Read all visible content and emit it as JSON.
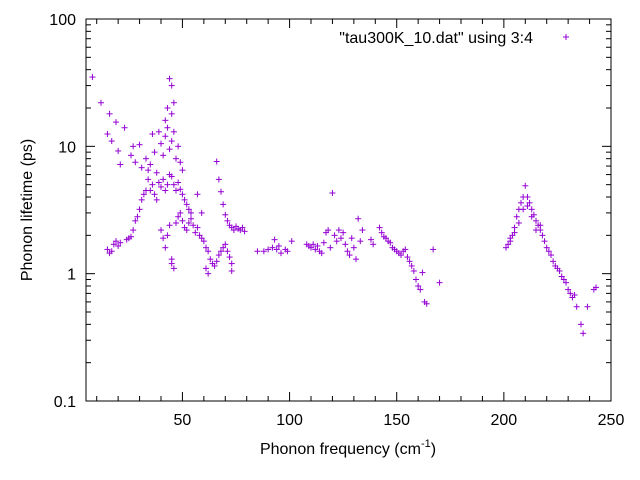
{
  "chart_data": {
    "type": "scatter",
    "xlabel": "Phonon frequency (cm",
    "xlabel_sup": "-1",
    "xlabel_end": ")",
    "ylabel": "Phonon lifetime (ps)",
    "xlim": [
      5,
      250
    ],
    "ylim": [
      0.1,
      100
    ],
    "yscale": "log",
    "x_ticks": [
      50,
      100,
      150,
      200,
      250
    ],
    "x_tick_labels": [
      "50",
      "100",
      "150",
      "200",
      "250"
    ],
    "y_ticks": [
      0.1,
      1,
      10,
      100
    ],
    "y_tick_labels": [
      "0.1",
      "1",
      "10",
      "100"
    ],
    "grid": false,
    "legend_position": "top-right",
    "marker": "+",
    "color": "#9400d3",
    "series": [
      {
        "name": "\"tau300K_10.dat\" using 3:4",
        "points": [
          [
            8,
            35
          ],
          [
            12,
            22
          ],
          [
            15,
            12.5
          ],
          [
            16,
            18
          ],
          [
            17,
            11
          ],
          [
            19,
            15.5
          ],
          [
            20,
            9.2
          ],
          [
            21,
            7.2
          ],
          [
            23,
            14
          ],
          [
            26,
            8.5
          ],
          [
            27,
            10
          ],
          [
            28,
            7.5
          ],
          [
            30,
            10.3
          ],
          [
            31,
            6.8
          ],
          [
            33,
            8
          ],
          [
            34,
            6.5
          ],
          [
            35,
            7.2
          ],
          [
            36,
            12.5
          ],
          [
            37,
            9
          ],
          [
            38,
            6.2
          ],
          [
            39,
            13
          ],
          [
            40,
            10.5
          ],
          [
            41,
            8.5
          ],
          [
            42,
            12
          ],
          [
            43,
            14
          ],
          [
            44,
            9.5
          ],
          [
            45,
            11
          ],
          [
            46,
            13
          ],
          [
            47,
            8
          ],
          [
            48,
            10
          ],
          [
            49,
            7.5
          ],
          [
            50,
            6.5
          ],
          [
            43,
            20
          ],
          [
            45,
            18
          ],
          [
            44,
            34
          ],
          [
            45,
            30
          ],
          [
            42,
            16
          ],
          [
            46,
            22
          ],
          [
            34,
            5.5
          ],
          [
            35,
            4.5
          ],
          [
            36,
            5
          ],
          [
            37,
            4.2
          ],
          [
            38,
            3.8
          ],
          [
            39,
            5.2
          ],
          [
            40,
            4.8
          ],
          [
            41,
            5.5
          ],
          [
            42,
            4.5
          ],
          [
            43,
            5
          ],
          [
            44,
            6
          ],
          [
            45,
            5.8
          ],
          [
            46,
            5
          ],
          [
            47,
            4.5
          ],
          [
            48,
            5.2
          ],
          [
            49,
            4.6
          ],
          [
            50,
            4.2
          ],
          [
            51,
            3.8
          ],
          [
            52,
            3.5
          ],
          [
            53,
            3.2
          ],
          [
            54,
            3
          ],
          [
            15,
            1.55
          ],
          [
            16,
            1.45
          ],
          [
            17,
            1.5
          ],
          [
            18,
            1.7
          ],
          [
            19,
            1.8
          ],
          [
            20,
            1.65
          ],
          [
            21,
            1.75
          ],
          [
            24,
            1.85
          ],
          [
            25,
            1.9
          ],
          [
            26,
            1.95
          ],
          [
            27,
            2.2
          ],
          [
            28,
            2.6
          ],
          [
            29,
            2.8
          ],
          [
            30,
            3.2
          ],
          [
            31,
            3.8
          ],
          [
            32,
            4.2
          ],
          [
            33,
            4.5
          ],
          [
            40,
            2.2
          ],
          [
            41,
            1.9
          ],
          [
            42,
            1.6
          ],
          [
            43,
            2
          ],
          [
            44,
            2.4
          ],
          [
            45,
            1.3
          ],
          [
            46,
            1.1
          ],
          [
            45,
            1.2
          ],
          [
            47,
            2.5
          ],
          [
            48,
            2.8
          ],
          [
            49,
            3
          ],
          [
            50,
            2.6
          ],
          [
            51,
            2.3
          ],
          [
            52,
            2.2
          ],
          [
            53,
            2.5
          ],
          [
            54,
            2.7
          ],
          [
            55,
            2.4
          ],
          [
            56,
            2.1
          ],
          [
            57,
            2.3
          ],
          [
            58,
            2
          ],
          [
            59,
            1.9
          ],
          [
            60,
            1.8
          ],
          [
            61,
            1.6
          ],
          [
            62,
            1.5
          ],
          [
            63,
            1.3
          ],
          [
            64,
            1.2
          ],
          [
            65,
            1.15
          ],
          [
            66,
            1.25
          ],
          [
            67,
            1.4
          ],
          [
            68,
            1.5
          ],
          [
            69,
            1.6
          ],
          [
            70,
            1.7
          ],
          [
            71,
            1.5
          ],
          [
            72,
            1.35
          ],
          [
            73,
            1.2
          ],
          [
            61,
            1.1
          ],
          [
            62,
            1.0
          ],
          [
            73,
            1.05
          ],
          [
            66,
            7.6
          ],
          [
            67,
            5.5
          ],
          [
            68,
            4.4
          ],
          [
            69,
            3.5
          ],
          [
            70,
            2.9
          ],
          [
            71,
            2.6
          ],
          [
            72,
            2.4
          ],
          [
            73,
            2.3
          ],
          [
            74,
            2.2
          ],
          [
            75,
            2.35
          ],
          [
            76,
            2.25
          ],
          [
            77,
            2.2
          ],
          [
            78,
            2.3
          ],
          [
            79,
            2.15
          ],
          [
            57,
            4.2
          ],
          [
            59,
            3
          ],
          [
            85,
            1.5
          ],
          [
            88,
            1.5
          ],
          [
            90,
            1.55
          ],
          [
            92,
            1.6
          ],
          [
            93,
            1.85
          ],
          [
            94,
            1.55
          ],
          [
            95,
            1.65
          ],
          [
            96,
            1.45
          ],
          [
            98,
            1.55
          ],
          [
            99,
            1.5
          ],
          [
            101,
            1.8
          ],
          [
            108,
            1.7
          ],
          [
            109,
            1.65
          ],
          [
            110,
            1.6
          ],
          [
            111,
            1.7
          ],
          [
            112,
            1.55
          ],
          [
            113,
            1.65
          ],
          [
            114,
            1.5
          ],
          [
            115,
            1.45
          ],
          [
            116,
            1.75
          ],
          [
            117,
            2.1
          ],
          [
            118,
            2.2
          ],
          [
            119,
            1.6
          ],
          [
            120,
            4.3
          ],
          [
            121,
            2
          ],
          [
            122,
            1.8
          ],
          [
            123,
            2.2
          ],
          [
            124,
            1.9
          ],
          [
            125,
            2.1
          ],
          [
            126,
            1.7
          ],
          [
            127,
            1.5
          ],
          [
            128,
            1.4
          ],
          [
            129,
            1.9
          ],
          [
            130,
            1.6
          ],
          [
            131,
            1.3
          ],
          [
            132,
            2.7
          ],
          [
            133,
            1.8
          ],
          [
            134,
            2.2
          ],
          [
            138,
            1.85
          ],
          [
            139,
            1.7
          ],
          [
            142,
            2.3
          ],
          [
            143,
            2.1
          ],
          [
            144,
            1.95
          ],
          [
            145,
            1.9
          ],
          [
            146,
            1.8
          ],
          [
            147,
            1.75
          ],
          [
            148,
            1.6
          ],
          [
            149,
            1.55
          ],
          [
            150,
            1.5
          ],
          [
            151,
            1.45
          ],
          [
            152,
            1.4
          ],
          [
            153,
            1.5
          ],
          [
            154,
            1.55
          ],
          [
            155,
            1.35
          ],
          [
            156,
            1.25
          ],
          [
            157,
            1.15
          ],
          [
            158,
            1.05
          ],
          [
            159,
            0.9
          ],
          [
            160,
            0.8
          ],
          [
            161,
            0.75
          ],
          [
            162,
            1.02
          ],
          [
            163,
            0.6
          ],
          [
            164,
            0.58
          ],
          [
            167,
            1.55
          ],
          [
            170,
            0.85
          ],
          [
            201,
            1.6
          ],
          [
            202,
            1.7
          ],
          [
            203,
            1.8
          ],
          [
            204,
            2
          ],
          [
            205,
            2.3
          ],
          [
            206,
            2.8
          ],
          [
            207,
            3.2
          ],
          [
            208,
            3.6
          ],
          [
            209,
            4
          ],
          [
            210,
            4.9
          ],
          [
            211,
            4
          ],
          [
            212,
            3.6
          ],
          [
            213,
            3.2
          ],
          [
            214,
            2.9
          ],
          [
            215,
            2.6
          ],
          [
            216,
            2.4
          ],
          [
            217,
            2.2
          ],
          [
            218,
            2
          ],
          [
            219,
            1.8
          ],
          [
            220,
            1.6
          ],
          [
            221,
            1.5
          ],
          [
            222,
            1.4
          ],
          [
            223,
            1.25
          ],
          [
            224,
            1.15
          ],
          [
            225,
            1.1
          ],
          [
            226,
            1.05
          ],
          [
            227,
            0.95
          ],
          [
            228,
            0.9
          ],
          [
            229,
            0.85
          ],
          [
            230,
            0.75
          ],
          [
            231,
            0.7
          ],
          [
            232,
            0.65
          ],
          [
            233,
            0.68
          ],
          [
            234,
            0.55
          ],
          [
            236,
            0.4
          ],
          [
            237,
            0.34
          ],
          [
            239,
            0.55
          ],
          [
            242,
            0.75
          ],
          [
            243,
            0.78
          ],
          [
            203,
            1.9
          ],
          [
            205,
            2.1
          ],
          [
            207,
            2.5
          ],
          [
            209,
            3.2
          ],
          [
            211,
            3.4
          ],
          [
            213,
            2.8
          ],
          [
            215,
            2.2
          ],
          [
            217,
            2.4
          ]
        ]
      }
    ]
  }
}
